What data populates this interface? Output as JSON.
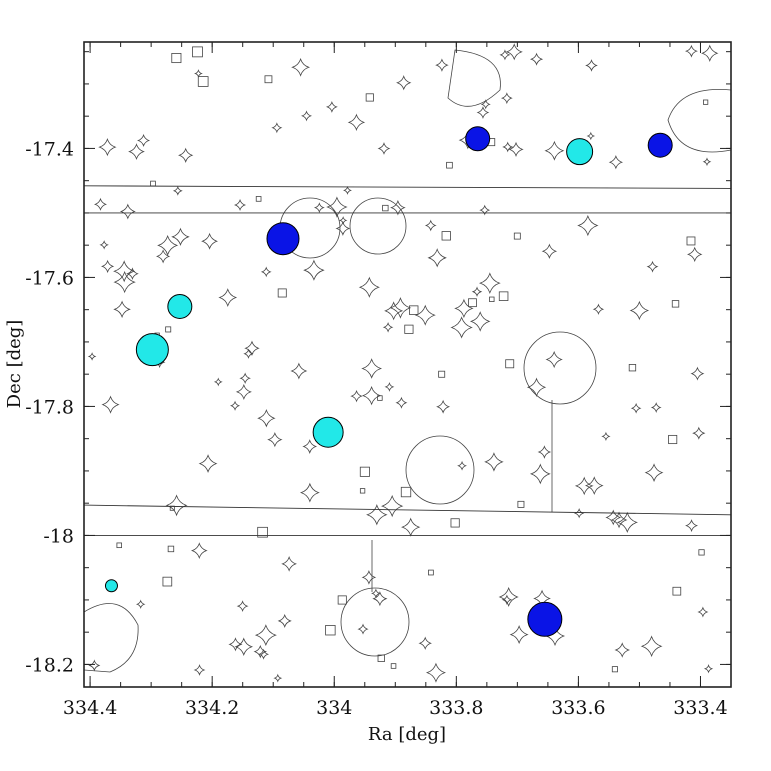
{
  "chart_data": {
    "type": "scatter",
    "title": "",
    "xlabel": "Ra [deg]",
    "ylabel": "Dec [deg]",
    "xlim": [
      334.41,
      333.35
    ],
    "ylim": [
      -18.235,
      -17.235
    ],
    "x_ticks": [
      "334.4",
      "334.2",
      "334",
      "333.8",
      "333.6",
      "333.4"
    ],
    "y_ticks": [
      "-17.4",
      "-17.6",
      "-17.8",
      "-18",
      "-18.2"
    ],
    "colors": {
      "blue": "#0a14e6",
      "cyan": "#22e8e8",
      "line": "#222222"
    },
    "series": [
      {
        "color": "blue",
        "points": [
          {
            "ra": 333.765,
            "dec": -17.385,
            "r": 12
          },
          {
            "ra": 333.466,
            "dec": -17.395,
            "r": 12
          },
          {
            "ra": 334.084,
            "dec": -17.54,
            "r": 16
          },
          {
            "ra": 333.655,
            "dec": -18.13,
            "r": 17
          }
        ]
      },
      {
        "color": "cyan",
        "points": [
          {
            "ra": 333.598,
            "dec": -17.405,
            "r": 13
          },
          {
            "ra": 334.253,
            "dec": -17.645,
            "r": 12
          },
          {
            "ra": 334.298,
            "dec": -17.712,
            "r": 16
          },
          {
            "ra": 334.01,
            "dec": -17.84,
            "r": 15
          },
          {
            "ra": 334.365,
            "dec": -18.078,
            "r": 6
          }
        ]
      }
    ],
    "field_boundaries": [
      {
        "ra": [
          334.41,
          333.35
        ],
        "dec": [
          -17.458,
          -17.462
        ]
      },
      {
        "ra": [
          334.41,
          333.35
        ],
        "dec": [
          -17.5,
          -17.5
        ]
      },
      {
        "ra": [
          334.41,
          333.35
        ],
        "dec": [
          -17.953,
          -17.968
        ]
      },
      {
        "ra": [
          334.41,
          333.35
        ],
        "dec": [
          -18.0,
          -18.0
        ]
      }
    ],
    "grid": false,
    "legend": "none"
  }
}
